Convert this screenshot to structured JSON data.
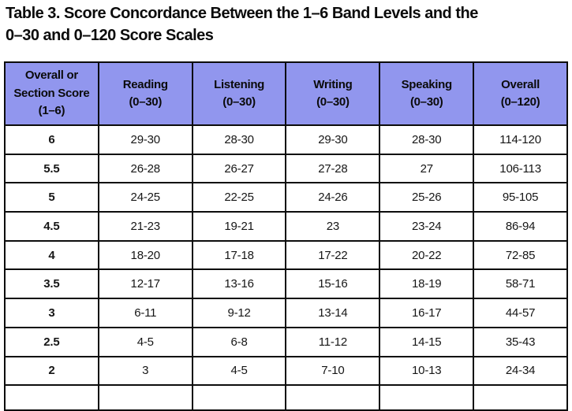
{
  "title": {
    "line1": "Table 3. Score Concordance Between the 1–6 Band Levels and the",
    "line2": "0–30 and 0–120 Score Scales"
  },
  "colors": {
    "header_bg": "#9196ee",
    "border": "#0c0c0c",
    "text": "#0d0d0d"
  },
  "table": {
    "columns": [
      "band",
      "reading",
      "listening",
      "writing",
      "speaking",
      "overall"
    ],
    "headers": [
      {
        "key": "band",
        "lines": [
          "Overall or",
          "Section Score",
          "(1–6)"
        ]
      },
      {
        "key": "reading",
        "lines": [
          "Reading",
          "(0–30)"
        ]
      },
      {
        "key": "listening",
        "lines": [
          "Listening",
          "(0–30)"
        ]
      },
      {
        "key": "writing",
        "lines": [
          "Writing",
          "(0–30)"
        ]
      },
      {
        "key": "speaking",
        "lines": [
          "Speaking",
          "(0–30)"
        ]
      },
      {
        "key": "overall",
        "lines": [
          "Overall",
          "(0–120)"
        ]
      }
    ],
    "rows": [
      {
        "band": "6",
        "reading": "29-30",
        "listening": "28-30",
        "writing": "29-30",
        "speaking": "28-30",
        "overall": "114-120"
      },
      {
        "band": "5.5",
        "reading": "26-28",
        "listening": "26-27",
        "writing": "27-28",
        "speaking": "27",
        "overall": "106-113"
      },
      {
        "band": "5",
        "reading": "24-25",
        "listening": "22-25",
        "writing": "24-26",
        "speaking": "25-26",
        "overall": "95-105"
      },
      {
        "band": "4.5",
        "reading": "21-23",
        "listening": "19-21",
        "writing": "23",
        "speaking": "23-24",
        "overall": "86-94"
      },
      {
        "band": "4",
        "reading": "18-20",
        "listening": "17-18",
        "writing": "17-22",
        "speaking": "20-22",
        "overall": "72-85"
      },
      {
        "band": "3.5",
        "reading": "12-17",
        "listening": "13-16",
        "writing": "15-16",
        "speaking": "18-19",
        "overall": "58-71"
      },
      {
        "band": "3",
        "reading": "6-11",
        "listening": "9-12",
        "writing": "13-14",
        "speaking": "16-17",
        "overall": "44-57"
      },
      {
        "band": "2.5",
        "reading": "4-5",
        "listening": "6-8",
        "writing": "11-12",
        "speaking": "14-15",
        "overall": "35-43"
      },
      {
        "band": "2",
        "reading": "3",
        "listening": "4-5",
        "writing": "7-10",
        "speaking": "10-13",
        "overall": "24-34"
      }
    ],
    "truncated_next_row": true
  }
}
